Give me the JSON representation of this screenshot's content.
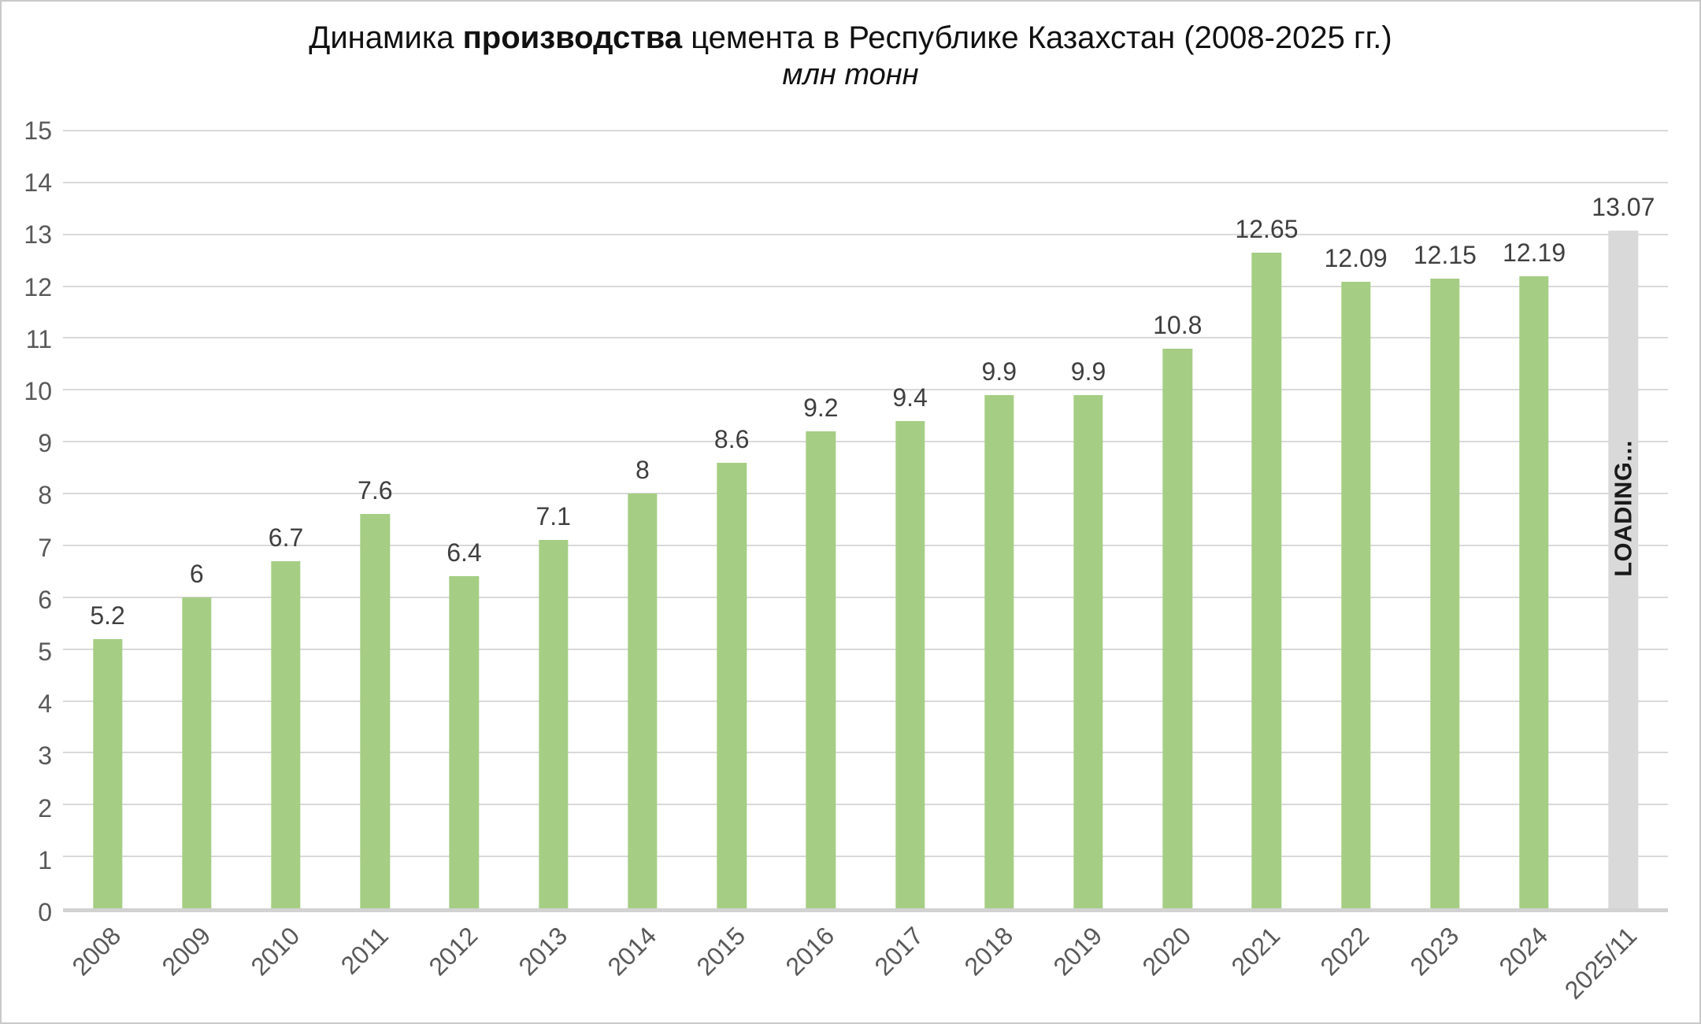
{
  "title": {
    "part1": "Динамика ",
    "part2_bold": "производства",
    "part3": " цемента в Республике Казахстан (2008-2025 гг.)"
  },
  "subtitle": "млн тонн",
  "colors": {
    "bar_green": "#a5ce84",
    "bar_gray": "#d9d9d9",
    "gridline": "#d9d9d9",
    "axis_text": "#595959",
    "value_text": "#3f3f3f"
  },
  "chart_data": {
    "type": "bar",
    "title": "Динамика производства цемента в Республике Казахстан (2008-2025 гг.)",
    "subtitle": "млн тонн",
    "categories": [
      "2008",
      "2009",
      "2010",
      "2011",
      "2012",
      "2013",
      "2014",
      "2015",
      "2016",
      "2017",
      "2018",
      "2019",
      "2020",
      "2021",
      "2022",
      "2023",
      "2024",
      "2025/11"
    ],
    "values": [
      5.2,
      6,
      6.7,
      7.6,
      6.4,
      7.1,
      8,
      8.6,
      9.2,
      9.4,
      9.9,
      9.9,
      10.8,
      12.65,
      12.09,
      12.15,
      12.19,
      13.07
    ],
    "value_labels": [
      "5.2",
      "6",
      "6.7",
      "7.6",
      "6.4",
      "7.1",
      "8",
      "8.6",
      "9.2",
      "9.4",
      "9.9",
      "9.9",
      "10.8",
      "12.65",
      "12.09",
      "12.15",
      "12.19",
      "13.07"
    ],
    "xlabel": "",
    "ylabel": "млн тонн",
    "ylim": [
      0,
      15
    ],
    "ytick_step": 1,
    "grid": true,
    "legend_position": "none",
    "bar_color": "#a5ce84",
    "last_bar_color": "#d9d9d9",
    "last_bar_overlay_text": "LOADING..."
  }
}
